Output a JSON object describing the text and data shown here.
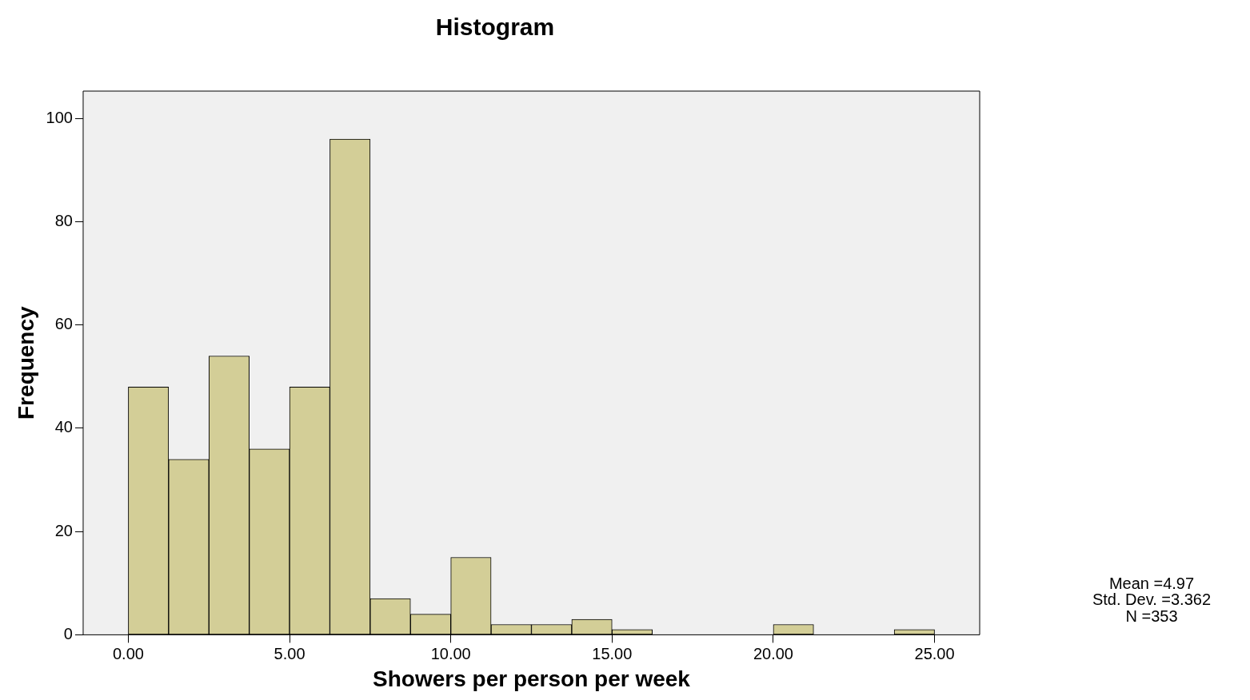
{
  "chart_data": {
    "type": "histogram",
    "title": "Histogram",
    "xlabel": "Showers per person per week",
    "ylabel": "Frequency",
    "bins": [
      0,
      1.25,
      2.5,
      3.75,
      5,
      6.25,
      7.5,
      8.75,
      10,
      11.25,
      12.5,
      13.75,
      15,
      16.25,
      17.5,
      18.75,
      20,
      21.25,
      22.5,
      23.75,
      25
    ],
    "values": [
      48,
      34,
      54,
      36,
      48,
      96,
      7,
      4,
      15,
      2,
      2,
      3,
      1,
      0,
      0,
      0,
      2,
      0,
      0,
      1
    ],
    "color": "#d3ce97",
    "xlim": [
      -1.4,
      26.4
    ],
    "ylim": [
      0,
      105.3
    ],
    "xticks": [
      {
        "value": 0,
        "label": "0.00"
      },
      {
        "value": 5,
        "label": "5.00"
      },
      {
        "value": 10,
        "label": "10.00"
      },
      {
        "value": 15,
        "label": "15.00"
      },
      {
        "value": 20,
        "label": "20.00"
      },
      {
        "value": 25,
        "label": "25.00"
      }
    ],
    "yticks": [
      0,
      20,
      40,
      60,
      80,
      100
    ],
    "grid": false,
    "legend": false,
    "annotations": [
      "Mean =4.97",
      "Std. Dev. =3.362",
      "N =353"
    ]
  }
}
